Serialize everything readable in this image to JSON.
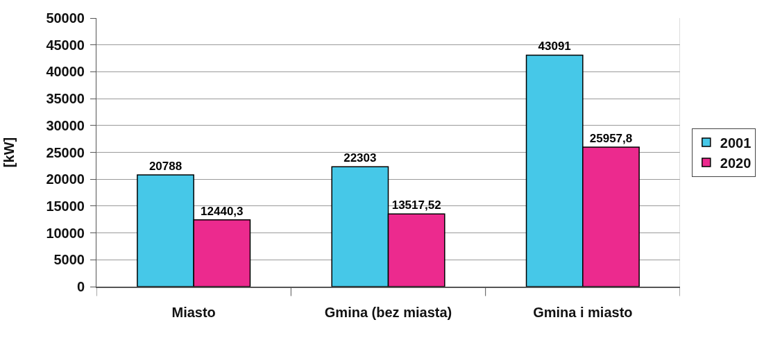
{
  "chart_data": {
    "type": "bar",
    "ylabel": "[kW]",
    "categories": [
      "Miasto",
      "Gmina (bez miasta)",
      "Gmina i miasto"
    ],
    "series": [
      {
        "name": "2001",
        "color": "#46c8e8",
        "values": [
          20788,
          22303,
          43091
        ],
        "value_labels": [
          "20788",
          "22303",
          "43091"
        ]
      },
      {
        "name": "2020",
        "color": "#ec2a8e",
        "values": [
          12440.3,
          13517.52,
          25957.8
        ],
        "value_labels": [
          "12440,3",
          "13517,52",
          "25957,8"
        ]
      }
    ],
    "ylim": [
      0,
      50000
    ],
    "yticks": [
      0,
      5000,
      10000,
      15000,
      20000,
      25000,
      30000,
      35000,
      40000,
      45000,
      50000
    ],
    "grid": "y",
    "legend": "right"
  }
}
